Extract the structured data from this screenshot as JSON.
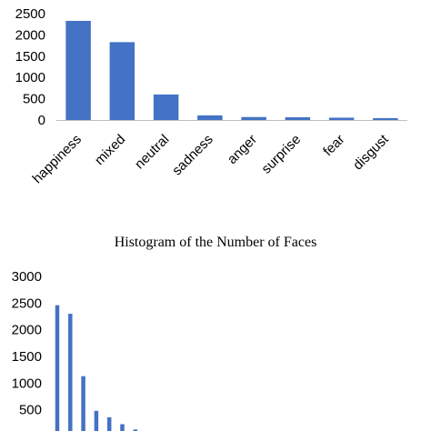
{
  "chart_data": [
    {
      "type": "bar",
      "title": "",
      "categories": [
        "happiness",
        "mixed",
        "neutral",
        "sadness",
        "anger",
        "surprise",
        "fear",
        "disgust"
      ],
      "values": [
        2330,
        1830,
        600,
        110,
        70,
        65,
        55,
        45
      ],
      "ylim": [
        0,
        2500
      ],
      "yticks": [
        "0",
        "500",
        "1000",
        "1500",
        "2000",
        "2500"
      ],
      "color": "#4472c4",
      "grid": false
    },
    {
      "type": "bar",
      "title": "Histogram of the Number of Faces",
      "values": [
        2460,
        2300,
        1130,
        480,
        360,
        230,
        130
      ],
      "ylim": [
        0,
        3000
      ],
      "yticks": [
        "500",
        "1000",
        "1500",
        "2000",
        "2500",
        "3000"
      ],
      "color": "#4472c4",
      "grid": false
    }
  ]
}
